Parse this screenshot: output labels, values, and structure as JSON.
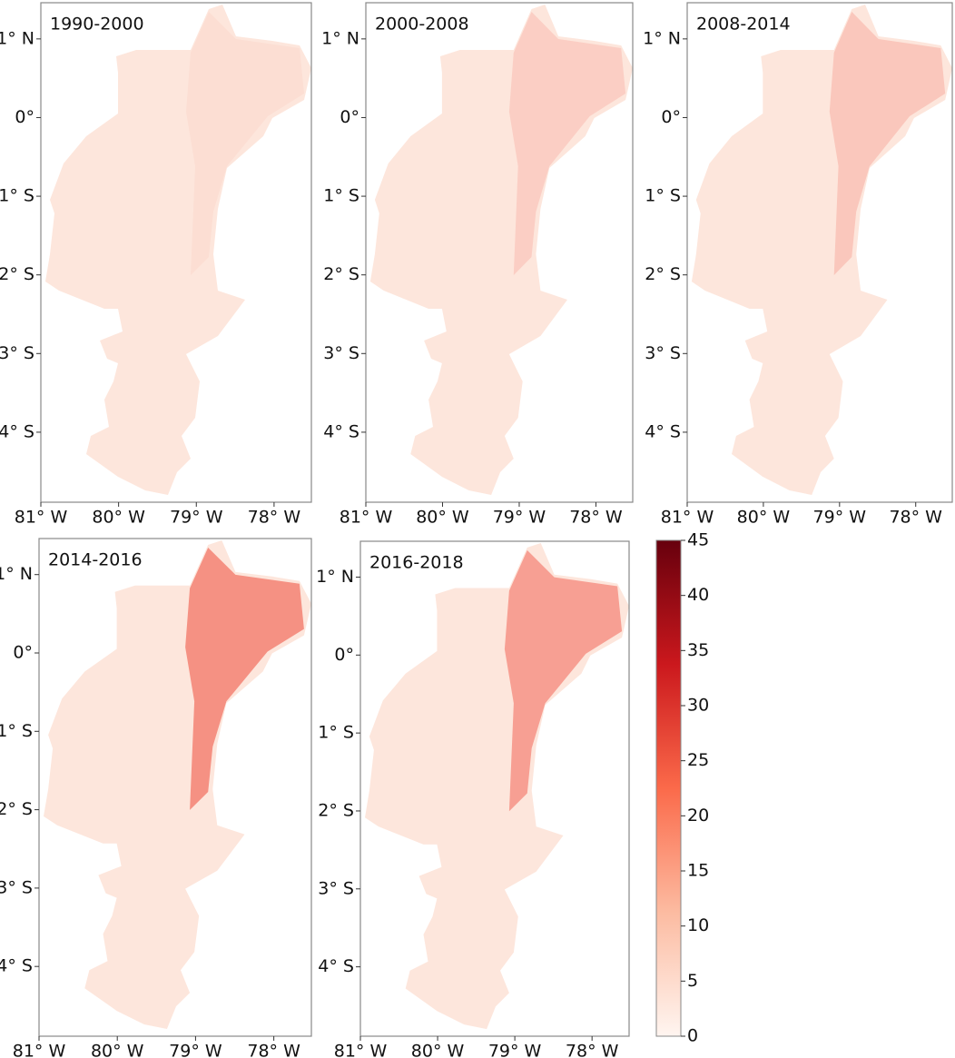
{
  "chart_data": {
    "type": "map",
    "panels": [
      {
        "title": "1990-2000"
      },
      {
        "title": "2000-2008"
      },
      {
        "title": "2008-2014"
      },
      {
        "title": "2014-2016"
      },
      {
        "title": "2016-2018"
      }
    ],
    "ylim": [
      -4.89,
      1.46
    ],
    "yticks": [
      {
        "value": 1,
        "label": "1° N"
      },
      {
        "value": 0,
        "label": "0°"
      },
      {
        "value": -1,
        "label": "1° S"
      },
      {
        "value": -2,
        "label": "2° S"
      },
      {
        "value": -3,
        "label": "3° S"
      },
      {
        "value": -4,
        "label": "4° S"
      }
    ],
    "xlim": [
      -81.0,
      -77.52
    ],
    "xticks": [
      {
        "value": -81,
        "label": "81° W"
      },
      {
        "value": -80,
        "label": "80° W"
      },
      {
        "value": -79,
        "label": "79° W"
      },
      {
        "value": -78,
        "label": "78° W"
      }
    ],
    "colorbar": {
      "lim": [
        0,
        45
      ],
      "ticks": [
        0,
        5,
        10,
        15,
        20,
        25,
        30,
        35,
        40,
        45
      ]
    }
  }
}
